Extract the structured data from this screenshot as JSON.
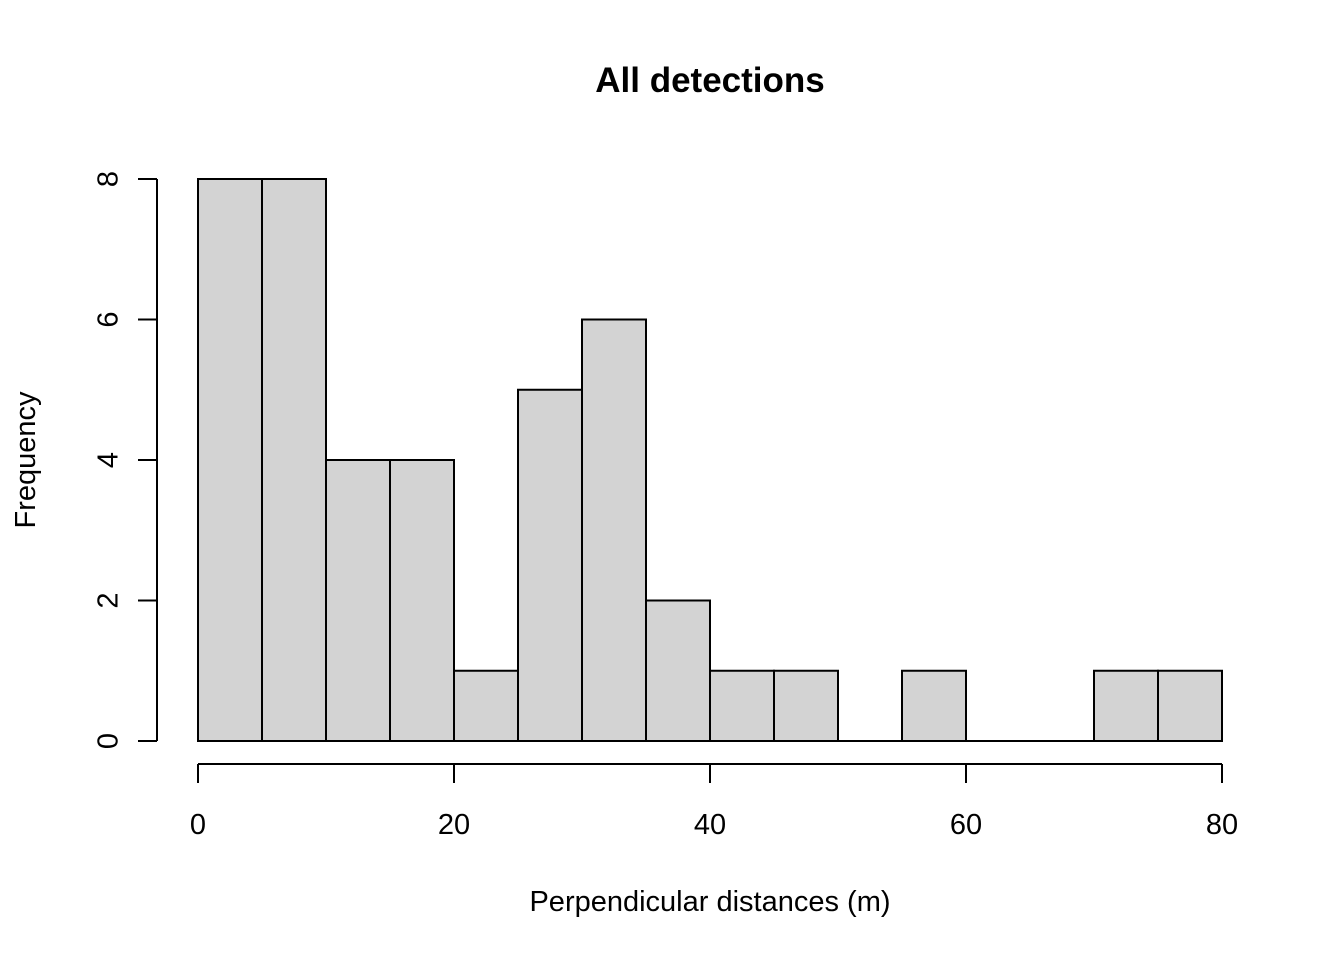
{
  "chart_data": {
    "type": "bar",
    "title": "All detections",
    "xlabel": "Perpendicular distances (m)",
    "ylabel": "Frequency",
    "bin_edges": [
      0,
      5,
      10,
      15,
      20,
      25,
      30,
      35,
      40,
      45,
      50,
      55,
      60,
      65,
      70,
      75,
      80
    ],
    "values": [
      8,
      8,
      4,
      4,
      1,
      5,
      6,
      2,
      1,
      1,
      0,
      1,
      0,
      0,
      1,
      1
    ],
    "xlim": [
      0,
      80
    ],
    "ylim": [
      0,
      8
    ],
    "x_ticks": [
      0,
      20,
      40,
      60,
      80
    ],
    "y_ticks": [
      0,
      2,
      4,
      6,
      8
    ],
    "bar_color": "#d3d3d3",
    "grid": false
  }
}
